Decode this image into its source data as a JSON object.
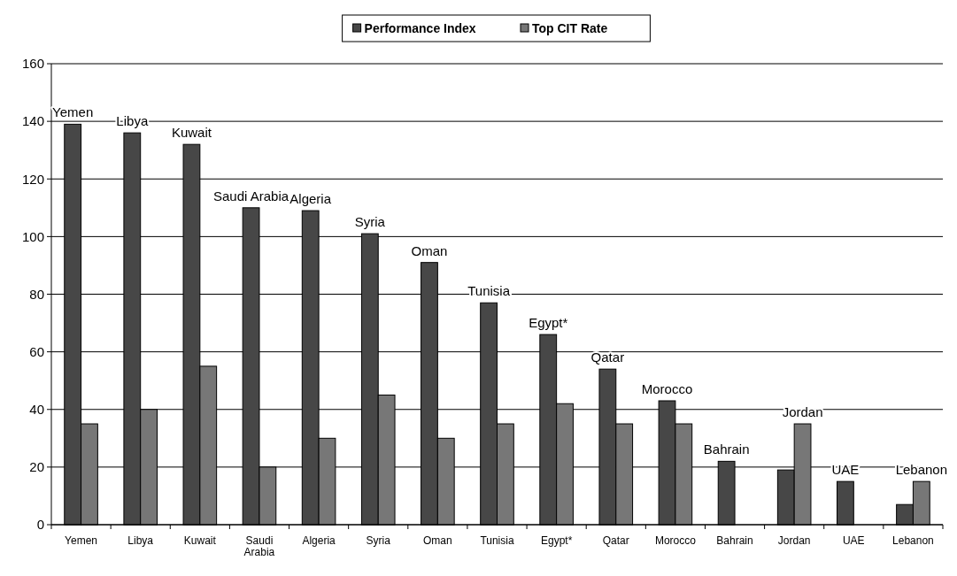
{
  "chart_data": {
    "type": "bar",
    "categories": [
      "Yemen",
      "Libya",
      "Kuwait",
      "Saudi Arabia",
      "Algeria",
      "Syria",
      "Oman",
      "Tunisia",
      "Egypt*",
      "Qatar",
      "Morocco",
      "Bahrain",
      "Jordan",
      "UAE",
      "Lebanon"
    ],
    "series": [
      {
        "name": "Performance Index",
        "color": "#474747",
        "values": [
          139,
          136,
          132,
          110,
          109,
          101,
          91,
          77,
          66,
          54,
          43,
          22,
          19,
          15,
          7
        ]
      },
      {
        "name": "Top CIT Rate",
        "color": "#777777",
        "values": [
          35,
          40,
          55,
          20,
          30,
          45,
          30,
          35,
          42,
          35,
          35,
          null,
          35,
          null,
          15
        ]
      }
    ],
    "ylim": [
      0,
      160
    ],
    "yticks": [
      0,
      20,
      40,
      60,
      80,
      100,
      120,
      140,
      160
    ],
    "grid": "y",
    "legend": "top",
    "annotations": [
      {
        "text": "Yemen",
        "x": "Yemen",
        "y": 139
      },
      {
        "text": "Libya",
        "x": "Libya",
        "y": 136
      },
      {
        "text": "Kuwait",
        "x": "Kuwait",
        "y": 132
      },
      {
        "text": "Saudi Arabia",
        "x": "Saudi Arabia",
        "y": 110
      },
      {
        "text": "Algeria",
        "x": "Algeria",
        "y": 109
      },
      {
        "text": "Syria",
        "x": "Syria",
        "y": 101
      },
      {
        "text": "Oman",
        "x": "Oman",
        "y": 91
      },
      {
        "text": "Tunisia",
        "x": "Tunisia",
        "y": 77
      },
      {
        "text": "Egypt*",
        "x": "Egypt*",
        "y": 66
      },
      {
        "text": "Qatar",
        "x": "Qatar",
        "y": 54
      },
      {
        "text": "Morocco",
        "x": "Morocco",
        "y": 43
      },
      {
        "text": "Bahrain",
        "x": "Bahrain",
        "y": 22
      },
      {
        "text": "Jordan",
        "x": "Jordan",
        "y": 35
      },
      {
        "text": "UAE",
        "x": "UAE",
        "y": 15
      },
      {
        "text": "Lebanon",
        "x": "Lebanon",
        "y": 15
      }
    ]
  }
}
